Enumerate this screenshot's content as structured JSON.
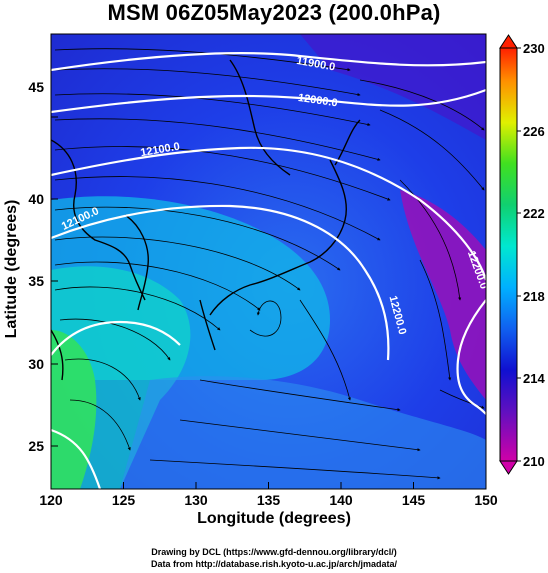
{
  "title": "MSM 06Z05May2023 (200.0hPa)",
  "x_axis": {
    "label": "Longitude (degrees)",
    "ticks": [
      "120",
      "125",
      "130",
      "135",
      "140",
      "145",
      "150"
    ]
  },
  "y_axis": {
    "label": "Latitude  (degrees)",
    "ticks": [
      "25",
      "30",
      "35",
      "40",
      "45"
    ]
  },
  "colorbar": {
    "ticks": [
      "230",
      "226",
      "222",
      "218",
      "214",
      "210"
    ],
    "colors": [
      "#e0009a",
      "#1010d0",
      "#00c8ff",
      "#20e060",
      "#e8e800",
      "#ff3000"
    ]
  },
  "contour_labels": [
    "11900.0",
    "12000.0",
    "12100.0",
    "12200.0",
    "12100.0",
    "12200.0"
  ],
  "credits": {
    "line1": "Drawing by DCL (https://www.gfd-dennou.org/library/dcl/)",
    "line2": "Data from http://database.rish.kyoto-u.ac.jp/arch/jmadata/"
  }
}
